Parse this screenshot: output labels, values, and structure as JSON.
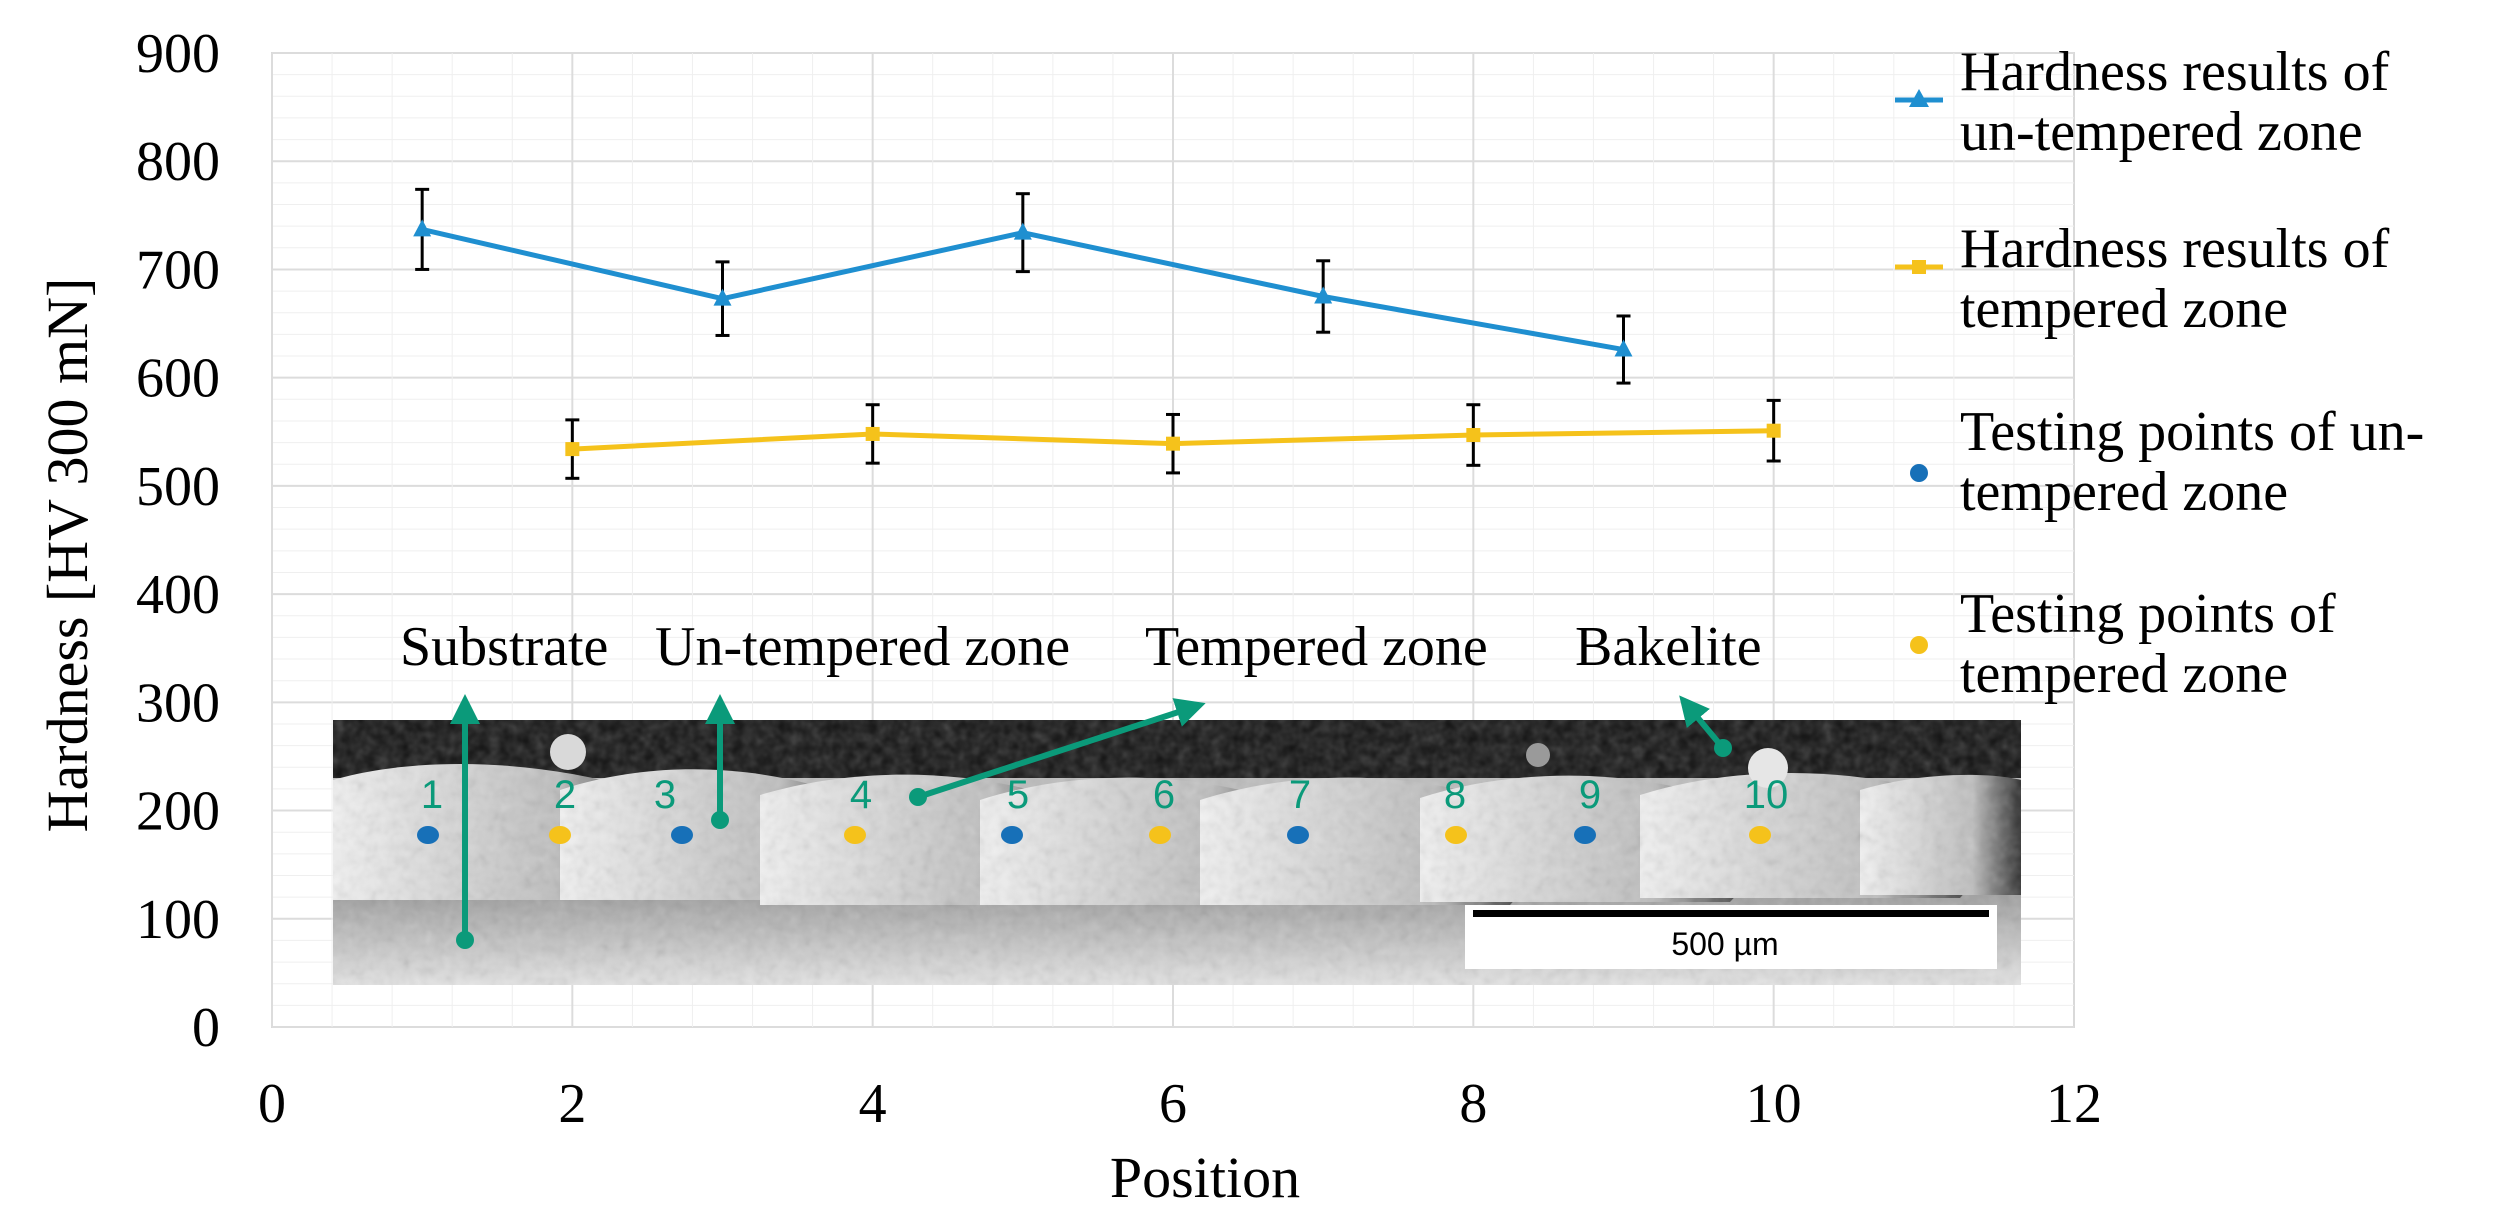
{
  "chart_data": {
    "type": "line",
    "title": "",
    "xlabel": "Position",
    "ylabel": "Hardness [HV 300 mN]",
    "xlim": [
      0,
      12
    ],
    "ylim": [
      0,
      900
    ],
    "x_ticks": [
      "0",
      "2",
      "4",
      "6",
      "8",
      "10",
      "12"
    ],
    "y_ticks": [
      "0",
      "100",
      "200",
      "300",
      "400",
      "500",
      "600",
      "700",
      "800",
      "900"
    ],
    "grid": true,
    "legend_position": "right",
    "series": [
      {
        "name": "Hardness results of un-tempered zone",
        "legend_lines": [
          "Hardness results of",
          "un-tempered zone"
        ],
        "color": "#1f8fd0",
        "marker": "triangle",
        "x": [
          1,
          3,
          5,
          7,
          9
        ],
        "y": [
          737,
          673,
          734,
          675,
          626
        ],
        "err": [
          37,
          34,
          36,
          33,
          31
        ]
      },
      {
        "name": "Hardness results of tempered zone",
        "legend_lines": [
          "Hardness results of",
          "tempered zone"
        ],
        "color": "#f5c21b",
        "marker": "square",
        "x": [
          2,
          4,
          6,
          8,
          10
        ],
        "y": [
          534,
          548,
          539,
          547,
          551
        ],
        "err": [
          27,
          27,
          27,
          28,
          28
        ]
      }
    ],
    "point_legend": [
      {
        "name": "Testing points of un-tempered zone",
        "legend_lines": [
          "Testing points of un-",
          "tempered zone"
        ],
        "color": "#1770b8"
      },
      {
        "name": "Testing points of tempered zone",
        "legend_lines": [
          "Testing points of",
          "tempered zone"
        ],
        "color": "#f5c21b"
      }
    ],
    "annotations": {
      "zone_labels": [
        "Substrate",
        "Un-tempered zone",
        "Tempered zone",
        "Bakelite"
      ],
      "testing_points": [
        {
          "label": "1",
          "zone": "un-tempered"
        },
        {
          "label": "2",
          "zone": "tempered"
        },
        {
          "label": "3",
          "zone": "un-tempered"
        },
        {
          "label": "4",
          "zone": "tempered"
        },
        {
          "label": "5",
          "zone": "un-tempered"
        },
        {
          "label": "6",
          "zone": "tempered"
        },
        {
          "label": "7",
          "zone": "un-tempered"
        },
        {
          "label": "8",
          "zone": "tempered"
        },
        {
          "label": "9",
          "zone": "un-tempered"
        },
        {
          "label": "10",
          "zone": "tempered"
        }
      ],
      "scale_bar": "500 µm"
    },
    "colors": {
      "arrow": "#0b9a7a",
      "grid_major": "#dcdcdc",
      "grid_minor": "#efefef",
      "error_bar": "#000000"
    }
  }
}
